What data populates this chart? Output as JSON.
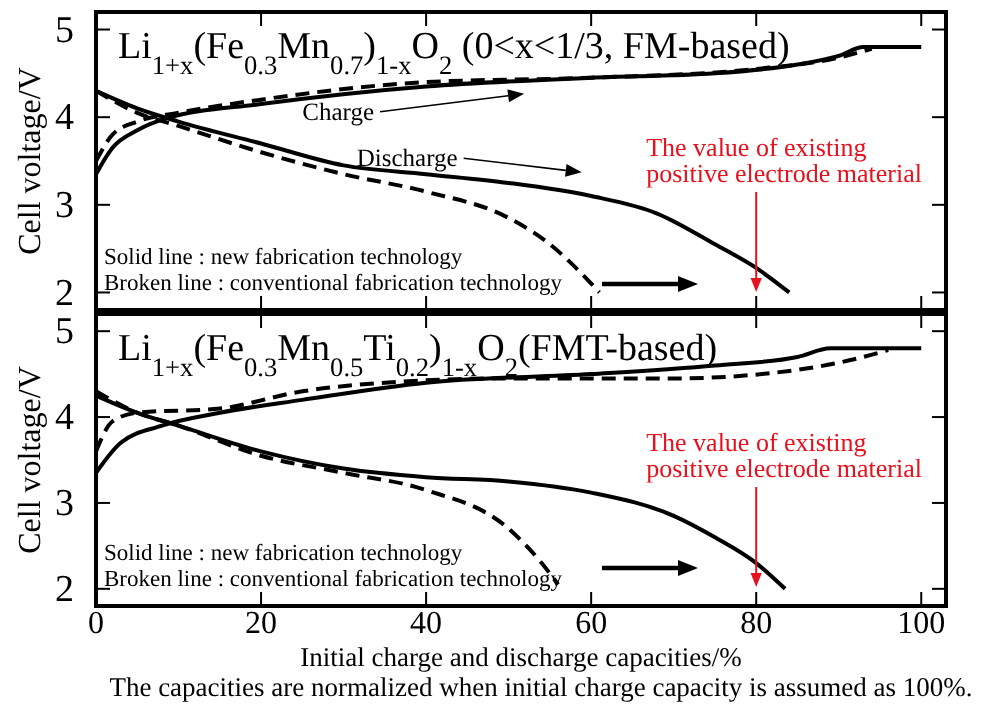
{
  "chart_data": [
    {
      "type": "line",
      "title": "Li$_{1+x}$(Fe$_{0.3}$Mn$_{0.7}$)$_{1-x}$O$_{2}$ (0<x<1/3, FM-based)",
      "ylabel": "Cell voltage/V",
      "xlim": [
        0,
        103
      ],
      "ylim": [
        1.8,
        5.2
      ],
      "xticks": [
        {
          "value": 0,
          "label": null
        },
        {
          "value": 20,
          "label": null
        },
        {
          "value": 40,
          "label": null
        },
        {
          "value": 60,
          "label": null
        },
        {
          "value": 80,
          "label": null
        },
        {
          "value": 100,
          "label": null
        }
      ],
      "yticks": [
        2,
        3,
        4,
        5
      ],
      "tick_labels": "y",
      "grid": false,
      "series": [
        {
          "color": "#000000",
          "line_style": "solid",
          "x": [
            0,
            2,
            5,
            9,
            20,
            40,
            60,
            75,
            85,
            90,
            93,
            100
          ],
          "values": [
            3.35,
            3.65,
            3.85,
            4.0,
            4.15,
            4.35,
            4.45,
            4.5,
            4.6,
            4.7,
            4.8,
            4.8
          ]
        },
        {
          "color": "#000000",
          "line_style": "dashed",
          "x": [
            0,
            2,
            5,
            10,
            20,
            40,
            60,
            80,
            90,
            94
          ],
          "values": [
            3.5,
            3.8,
            3.95,
            4.05,
            4.2,
            4.4,
            4.45,
            4.55,
            4.68,
            4.78
          ]
        },
        {
          "color": "#000000",
          "line_style": "solid",
          "x": [
            0,
            5,
            10,
            20,
            30,
            40,
            50,
            60,
            68,
            75,
            80,
            84
          ],
          "values": [
            4.3,
            4.1,
            3.95,
            3.7,
            3.45,
            3.35,
            3.25,
            3.1,
            2.9,
            2.55,
            2.28,
            2.0
          ]
        },
        {
          "color": "#000000",
          "line_style": "dashed",
          "x": [
            0,
            5,
            10,
            20,
            30,
            40,
            50,
            55,
            59,
            61
          ],
          "values": [
            4.3,
            4.05,
            3.9,
            3.6,
            3.35,
            3.15,
            2.85,
            2.55,
            2.2,
            2.0
          ]
        }
      ],
      "annotations": [
        "Charge",
        "Discharge",
        {
          "text": "The value of existing\npositive electrode material",
          "x": 80,
          "y": 2.28
        },
        "Solid line : new fabrication technology",
        "Broken line : conventional fabrication technology"
      ]
    },
    {
      "type": "line",
      "title": "Li$_{1+x}$(Fe$_{0.3}$Mn$_{0.5}$Ti$_{0.2}$)$_{1-x}$O$_{2}$(FMT-based)",
      "ylabel": "Cell voltage/V",
      "xlabel": "Initial charge and discharge capacities/%",
      "xlim": [
        0,
        103
      ],
      "ylim": [
        1.8,
        5.2
      ],
      "xticks": [
        0,
        20,
        40,
        60,
        80,
        100
      ],
      "yticks": [
        2,
        3,
        4,
        5
      ],
      "grid": false,
      "series": [
        {
          "color": "#000000",
          "line_style": "solid",
          "x": [
            0,
            3,
            8,
            15,
            25,
            40,
            60,
            75,
            85,
            89,
            100
          ],
          "values": [
            3.35,
            3.7,
            3.9,
            4.05,
            4.2,
            4.4,
            4.5,
            4.6,
            4.7,
            4.8,
            4.8
          ]
        },
        {
          "color": "#000000",
          "line_style": "dashed",
          "x": [
            0,
            2,
            5,
            15,
            25,
            35,
            50,
            70,
            85,
            93,
            96
          ],
          "values": [
            3.6,
            3.95,
            4.05,
            4.1,
            4.3,
            4.4,
            4.45,
            4.45,
            4.55,
            4.7,
            4.78
          ]
        },
        {
          "color": "#000000",
          "line_style": "solid",
          "x": [
            0,
            5,
            10,
            20,
            30,
            40,
            50,
            60,
            70,
            75,
            80,
            83.5
          ],
          "values": [
            4.25,
            4.05,
            3.9,
            3.6,
            3.4,
            3.3,
            3.25,
            3.12,
            2.85,
            2.6,
            2.3,
            2.0
          ]
        },
        {
          "color": "#000000",
          "line_style": "dashed",
          "x": [
            0,
            5,
            10,
            20,
            30,
            40,
            50,
            54,
            56
          ],
          "values": [
            4.3,
            4.05,
            3.9,
            3.55,
            3.35,
            3.15,
            2.7,
            2.3,
            2.05
          ]
        }
      ],
      "annotations": [
        {
          "text": "The value of existing\npositive electrode material",
          "x": 80,
          "y": 2.3
        },
        "Solid line : new fabrication technology",
        "Broken line : conventional fabrication technology",
        "The capacities are normalized when initial charge capacity is assumed as 100%."
      ]
    }
  ]
}
